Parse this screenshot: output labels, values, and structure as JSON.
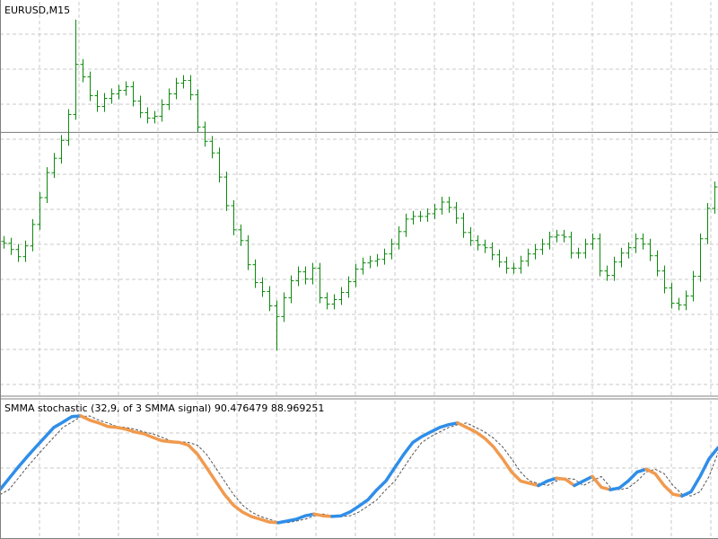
{
  "chart_data": [
    {
      "type": "ohlc",
      "title": "EURUSD,M15",
      "color": "#0b8a0b",
      "ylim": [
        0,
        440
      ],
      "price_line": 294,
      "grid": true,
      "open": [
        172,
        170,
        163,
        155,
        167,
        191,
        221,
        249,
        265,
        285,
        314,
        370,
        356,
        335,
        323,
        332,
        337,
        341,
        345,
        329,
        316,
        310,
        312,
        325,
        337,
        349,
        352,
        336,
        300,
        284,
        271,
        244,
        212,
        185,
        173,
        146,
        126,
        116,
        100,
        88,
        109,
        128,
        138,
        130,
        142,
        109,
        102,
        107,
        115,
        127,
        141,
        148,
        150,
        152,
        158,
        169,
        183,
        197,
        200,
        200,
        203,
        208,
        216,
        210,
        198,
        182,
        173,
        168,
        165,
        157,
        149,
        142,
        142,
        150,
        158,
        163,
        169,
        177,
        179,
        177,
        159,
        159,
        169,
        175,
        139,
        134,
        149,
        159,
        165,
        175,
        169,
        156,
        139,
        120,
        103,
        101,
        111,
        133,
        175,
        209
      ],
      "high": [
        178,
        176,
        169,
        173,
        197,
        227,
        255,
        271,
        291,
        320,
        420,
        376,
        362,
        341,
        338,
        343,
        347,
        351,
        351,
        335,
        322,
        318,
        331,
        343,
        355,
        358,
        358,
        342,
        306,
        290,
        277,
        250,
        218,
        191,
        179,
        152,
        132,
        122,
        106,
        115,
        134,
        144,
        144,
        148,
        148,
        115,
        113,
        121,
        133,
        147,
        154,
        156,
        158,
        164,
        175,
        189,
        203,
        206,
        206,
        209,
        214,
        222,
        222,
        216,
        204,
        188,
        179,
        174,
        171,
        163,
        155,
        148,
        156,
        164,
        169,
        175,
        183,
        185,
        185,
        183,
        165,
        175,
        181,
        181,
        145,
        155,
        165,
        171,
        181,
        181,
        175,
        162,
        145,
        126,
        109,
        117,
        139,
        181,
        215,
        239
      ],
      "low": [
        164,
        157,
        149,
        149,
        161,
        185,
        215,
        243,
        259,
        279,
        308,
        350,
        329,
        317,
        317,
        326,
        331,
        335,
        323,
        310,
        304,
        304,
        306,
        319,
        331,
        343,
        330,
        294,
        278,
        265,
        238,
        206,
        179,
        167,
        140,
        120,
        110,
        94,
        50,
        82,
        103,
        122,
        124,
        124,
        103,
        96,
        96,
        101,
        109,
        121,
        135,
        142,
        144,
        146,
        152,
        163,
        177,
        191,
        194,
        194,
        197,
        202,
        204,
        192,
        176,
        167,
        162,
        159,
        151,
        143,
        136,
        136,
        136,
        144,
        152,
        157,
        163,
        171,
        171,
        153,
        153,
        153,
        163,
        133,
        128,
        128,
        143,
        153,
        159,
        163,
        150,
        133,
        114,
        97,
        95,
        95,
        105,
        127,
        169,
        203
      ],
      "close": [
        170,
        163,
        155,
        167,
        191,
        221,
        249,
        265,
        285,
        314,
        370,
        356,
        335,
        323,
        332,
        337,
        341,
        345,
        329,
        316,
        310,
        312,
        325,
        337,
        349,
        352,
        336,
        300,
        284,
        271,
        244,
        212,
        185,
        173,
        146,
        126,
        116,
        100,
        88,
        109,
        128,
        138,
        130,
        142,
        109,
        102,
        107,
        115,
        127,
        141,
        148,
        150,
        152,
        158,
        169,
        183,
        197,
        200,
        200,
        203,
        208,
        216,
        210,
        198,
        182,
        173,
        168,
        165,
        157,
        149,
        142,
        142,
        150,
        158,
        163,
        169,
        177,
        179,
        177,
        159,
        159,
        169,
        175,
        139,
        134,
        149,
        159,
        165,
        175,
        169,
        156,
        139,
        120,
        103,
        101,
        111,
        133,
        175,
        209,
        233
      ]
    },
    {
      "type": "line",
      "title": "SMMA stochastic (32,9, of 3 SMMA signal) 90.476479 88.969251",
      "ylim": [
        65,
        104
      ],
      "grid": true,
      "series": [
        {
          "up_color": "#2f8ee8",
          "down_color": "#f09a4e",
          "values": [
            78.4,
            81.6,
            84.8,
            87.8,
            90.7,
            93.5,
            96.3,
            97.8,
            99.4,
            99.6,
            98.4,
            97.6,
            96.6,
            96.3,
            95.8,
            95.0,
            94.5,
            93.5,
            92.5,
            92.2,
            92.0,
            91.2,
            88.6,
            84.8,
            80.9,
            77.1,
            74.0,
            72.0,
            70.7,
            69.9,
            69.1,
            68.9,
            69.4,
            69.9,
            70.9,
            71.4,
            70.9,
            70.7,
            70.9,
            72.0,
            73.7,
            75.5,
            78.4,
            80.9,
            84.8,
            88.6,
            92.0,
            93.7,
            95.0,
            96.3,
            97.1,
            97.6,
            96.3,
            95.0,
            93.2,
            90.7,
            87.3,
            83.5,
            80.9,
            80.2,
            79.6,
            80.9,
            81.7,
            81.4,
            79.6,
            80.9,
            82.2,
            79.1,
            78.4,
            78.9,
            80.9,
            83.5,
            84.3,
            83.0,
            79.6,
            77.1,
            76.6,
            77.8,
            82.2,
            87.3,
            90.5
          ]
        },
        {
          "color": "#555555",
          "dashed": true,
          "values": [
            77.0,
            78.4,
            81.6,
            84.8,
            87.8,
            90.7,
            93.5,
            96.3,
            97.8,
            99.4,
            99.6,
            98.4,
            97.6,
            96.6,
            96.3,
            95.8,
            95.0,
            94.5,
            93.5,
            92.5,
            92.2,
            92.0,
            91.2,
            88.6,
            84.8,
            80.9,
            77.1,
            74.0,
            72.0,
            70.7,
            69.9,
            69.1,
            68.9,
            69.4,
            69.9,
            70.9,
            71.4,
            70.9,
            70.7,
            70.9,
            72.0,
            73.7,
            75.5,
            78.4,
            80.9,
            84.8,
            88.6,
            92.0,
            93.7,
            95.0,
            96.3,
            97.1,
            97.6,
            96.3,
            95.0,
            93.2,
            90.7,
            87.3,
            83.5,
            80.9,
            80.2,
            79.6,
            80.9,
            81.7,
            81.4,
            79.6,
            80.9,
            82.2,
            79.1,
            78.4,
            78.9,
            80.9,
            83.5,
            84.3,
            83.0,
            79.6,
            77.1,
            76.6,
            77.8,
            82.2,
            89.0
          ]
        }
      ]
    }
  ]
}
